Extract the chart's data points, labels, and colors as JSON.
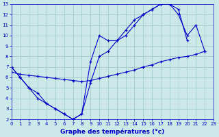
{
  "title": "Graphe des températures (°c)",
  "background_color": "#cce8e8",
  "grid_color": "#99c8c8",
  "line_color": "#0000cc",
  "xlim": [
    0,
    23
  ],
  "ylim": [
    2,
    13
  ],
  "xticks": [
    0,
    1,
    2,
    3,
    4,
    5,
    6,
    7,
    8,
    9,
    10,
    11,
    12,
    13,
    14,
    15,
    16,
    17,
    18,
    19,
    20,
    21,
    22,
    23
  ],
  "yticks": [
    2,
    3,
    4,
    5,
    6,
    7,
    8,
    9,
    10,
    11,
    12,
    13
  ],
  "curves": [
    {
      "x": [
        0,
        1,
        2,
        3,
        4,
        5,
        6,
        7,
        8,
        9,
        10,
        11,
        12,
        13,
        14,
        15,
        16,
        17,
        18,
        19,
        20,
        21,
        22
      ],
      "y": [
        7.0,
        6.0,
        5.0,
        4.5,
        3.5,
        3.0,
        2.5,
        2.0,
        2.5,
        5.5,
        8.0,
        8.5,
        9.5,
        10.5,
        11.5,
        12.0,
        12.5,
        13.0,
        13.0,
        12.0,
        10.0,
        11.0,
        8.5
      ]
    },
    {
      "x": [
        0,
        1,
        2,
        3,
        4,
        5,
        6,
        7,
        8,
        9,
        10,
        11,
        12,
        13,
        14,
        15,
        16,
        17,
        18,
        19,
        20
      ],
      "y": [
        7.0,
        6.0,
        5.0,
        4.0,
        3.5,
        3.0,
        2.5,
        2.0,
        2.5,
        7.5,
        10.0,
        9.5,
        9.5,
        10.0,
        11.0,
        12.0,
        12.5,
        13.0,
        13.0,
        12.5,
        9.5
      ]
    },
    {
      "x": [
        0,
        1,
        2,
        3,
        4,
        5,
        6,
        7,
        8,
        9,
        10,
        11,
        12,
        13,
        14,
        15,
        16,
        17,
        18,
        19,
        20,
        21,
        22
      ],
      "y": [
        6.5,
        6.3,
        6.2,
        6.1,
        6.0,
        5.9,
        5.8,
        5.7,
        5.6,
        5.7,
        5.9,
        6.1,
        6.3,
        6.5,
        6.7,
        7.0,
        7.2,
        7.5,
        7.7,
        7.9,
        8.0,
        8.2,
        8.5
      ]
    }
  ]
}
